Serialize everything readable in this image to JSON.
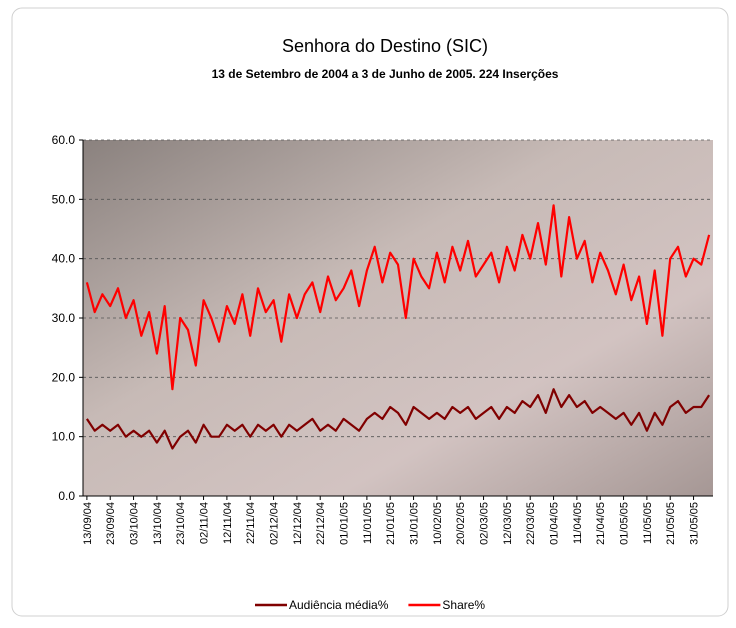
{
  "chart_data": {
    "type": "line",
    "title": "Senhora do Destino (SIC)",
    "subtitle": "13 de Setembro de 2004 a 3 de Junho de 2005.  224 Inserções",
    "categories": [
      "13/09/04",
      null,
      null,
      "23/09/04",
      null,
      null,
      "03/10/04",
      null,
      null,
      "13/10/04",
      null,
      null,
      "23/10/04",
      null,
      null,
      "02/11/04",
      null,
      null,
      "12/11/04",
      null,
      null,
      "22/11/04",
      null,
      null,
      "02/12/04",
      null,
      null,
      "12/12/04",
      null,
      null,
      "22/12/04",
      null,
      null,
      "01/01/05",
      null,
      null,
      "11/01/05",
      null,
      null,
      "21/01/05",
      null,
      null,
      "31/01/05",
      null,
      null,
      "10/02/05",
      null,
      null,
      "20/02/05",
      null,
      null,
      "02/03/05",
      null,
      null,
      "12/03/05",
      null,
      null,
      "22/03/05",
      null,
      null,
      "01/04/05",
      null,
      null,
      "11/04/05",
      null,
      null,
      "21/04/05",
      null,
      null,
      "01/05/05",
      null,
      null,
      "11/05/05",
      null,
      null,
      "21/05/05",
      null,
      null,
      "31/05/05",
      null,
      null
    ],
    "series": [
      {
        "name": "Audiência média%",
        "color": "#800000",
        "values": [
          13,
          11,
          12,
          11,
          12,
          10,
          11,
          10,
          11,
          9,
          11,
          8,
          10,
          11,
          9,
          12,
          10,
          10,
          12,
          11,
          12,
          10,
          12,
          11,
          12,
          10,
          12,
          11,
          12,
          13,
          11,
          12,
          11,
          13,
          12,
          11,
          13,
          14,
          13,
          15,
          14,
          12,
          15,
          14,
          13,
          14,
          13,
          15,
          14,
          15,
          13,
          14,
          15,
          13,
          15,
          14,
          16,
          15,
          17,
          14,
          18,
          15,
          17,
          15,
          16,
          14,
          15,
          14,
          13,
          14,
          12,
          14,
          11,
          14,
          12,
          15,
          16,
          14,
          15,
          15,
          17
        ]
      },
      {
        "name": "Share%",
        "color": "#ff0000",
        "values": [
          36,
          31,
          34,
          32,
          35,
          30,
          33,
          27,
          31,
          24,
          32,
          18,
          30,
          28,
          22,
          33,
          30,
          26,
          32,
          29,
          34,
          27,
          35,
          31,
          33,
          26,
          34,
          30,
          34,
          36,
          31,
          37,
          33,
          35,
          38,
          32,
          38,
          42,
          36,
          41,
          39,
          30,
          40,
          37,
          35,
          41,
          36,
          42,
          38,
          43,
          37,
          39,
          41,
          36,
          42,
          38,
          44,
          40,
          46,
          39,
          49,
          37,
          47,
          40,
          43,
          36,
          41,
          38,
          34,
          39,
          33,
          37,
          29,
          38,
          27,
          40,
          42,
          37,
          40,
          39,
          44
        ]
      }
    ],
    "ylim": [
      0,
      60
    ],
    "yticks": [
      {
        "value": 0,
        "label": "0.0"
      },
      {
        "value": 10,
        "label": "10.0"
      },
      {
        "value": 20,
        "label": "20.0"
      },
      {
        "value": 30,
        "label": "30.0"
      },
      {
        "value": 40,
        "label": "40.0"
      },
      {
        "value": 50,
        "label": "50.0"
      },
      {
        "value": 60,
        "label": "60.0"
      }
    ],
    "grid": true,
    "legend": "bottom"
  }
}
